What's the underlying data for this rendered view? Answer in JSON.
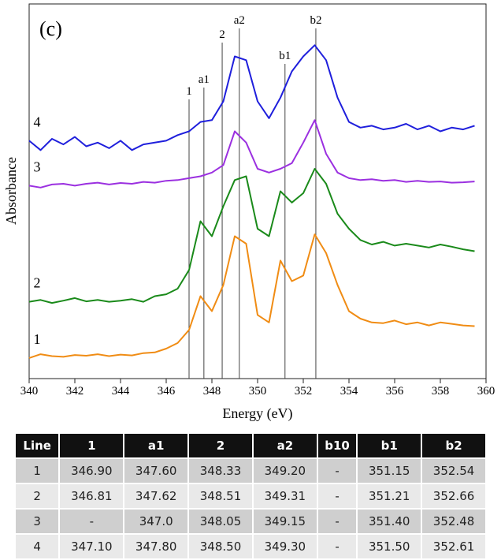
{
  "chart_data": {
    "type": "line",
    "title": "(c)",
    "x_label": "Energy (eV)",
    "y_label": "Absorbance",
    "xlim": [
      340,
      360
    ],
    "xticks": [
      340,
      342,
      344,
      346,
      348,
      350,
      352,
      354,
      356,
      358,
      360
    ],
    "ylim": [
      0,
      100
    ],
    "x": [
      340,
      340.5,
      341,
      341.5,
      342,
      342.5,
      343,
      343.5,
      344,
      344.5,
      345,
      345.5,
      346,
      346.5,
      347,
      347.5,
      348,
      348.5,
      349,
      349.5,
      350,
      350.5,
      351,
      351.5,
      352,
      352.5,
      353,
      353.5,
      354,
      354.5,
      355,
      355.5,
      356,
      356.5,
      357,
      357.5,
      358,
      358.5,
      359,
      359.5
    ],
    "series": [
      {
        "name": "4",
        "color": "#1f1fdc",
        "values": [
          63.5,
          61,
          64,
          62.5,
          64.5,
          62,
          63,
          61.5,
          63.5,
          61,
          62.5,
          63,
          63.5,
          65,
          66,
          68.5,
          69,
          74,
          86,
          85,
          74,
          69.5,
          75,
          82,
          86,
          89,
          85,
          75,
          68.5,
          67,
          67.5,
          66.5,
          67,
          68,
          66.5,
          67.5,
          66,
          67,
          66.5,
          67.5
        ]
      },
      {
        "name": "3",
        "color": "#9b30e0",
        "values": [
          51.5,
          51,
          51.8,
          52,
          51.5,
          52,
          52.3,
          51.8,
          52.2,
          52,
          52.5,
          52.3,
          52.8,
          53,
          53.5,
          54,
          55,
          57,
          66,
          63,
          56,
          55,
          56,
          57.5,
          63,
          69,
          60,
          55,
          53.5,
          53,
          53.2,
          52.8,
          53,
          52.5,
          52.8,
          52.5,
          52.6,
          52.3,
          52.4,
          52.6
        ]
      },
      {
        "name": "2",
        "color": "#1a8a1a",
        "values": [
          20.5,
          21,
          20.2,
          20.8,
          21.5,
          20.6,
          21,
          20.5,
          20.8,
          21.2,
          20.5,
          22,
          22.5,
          24,
          29,
          42,
          38,
          46,
          53,
          54,
          40,
          38,
          50,
          47,
          49.5,
          56,
          52,
          44,
          40,
          37,
          35.8,
          36.5,
          35.5,
          36,
          35.5,
          35,
          35.8,
          35.2,
          34.5,
          34
        ]
      },
      {
        "name": "1",
        "color": "#f08c14",
        "values": [
          5.5,
          6.5,
          6,
          5.8,
          6.3,
          6.1,
          6.5,
          6,
          6.4,
          6.2,
          6.8,
          7,
          8,
          9.5,
          13,
          22,
          18,
          25,
          38,
          36,
          17,
          15,
          31.5,
          26,
          27.5,
          38.5,
          33.5,
          25,
          18,
          16,
          15,
          14.8,
          15.5,
          14.5,
          15,
          14.2,
          15,
          14.6,
          14.2,
          14
        ]
      }
    ],
    "markers": [
      {
        "x": 347.0,
        "label": "1"
      },
      {
        "x": 347.65,
        "label": "a1"
      },
      {
        "x": 348.45,
        "label": "2"
      },
      {
        "x": 349.2,
        "label": "a2"
      },
      {
        "x": 351.2,
        "label": "b1"
      },
      {
        "x": 352.55,
        "label": "b2"
      }
    ]
  },
  "table": {
    "header": [
      "Line",
      "1",
      "a1",
      "2",
      "a2",
      "b10",
      "b1",
      "b2"
    ],
    "rows": [
      [
        "1",
        "346.90",
        "347.60",
        "348.33",
        "349.20",
        "-",
        "351.15",
        "352.54"
      ],
      [
        "2",
        "346.81",
        "347.62",
        "348.51",
        "349.31",
        "-",
        "351.21",
        "352.66"
      ],
      [
        "3",
        "-",
        "347.0",
        "348.05",
        "349.15",
        "-",
        "351.40",
        "352.48"
      ],
      [
        "4",
        "347.10",
        "347.80",
        "348.50",
        "349.30",
        "-",
        "351.50",
        "352.61"
      ]
    ]
  }
}
